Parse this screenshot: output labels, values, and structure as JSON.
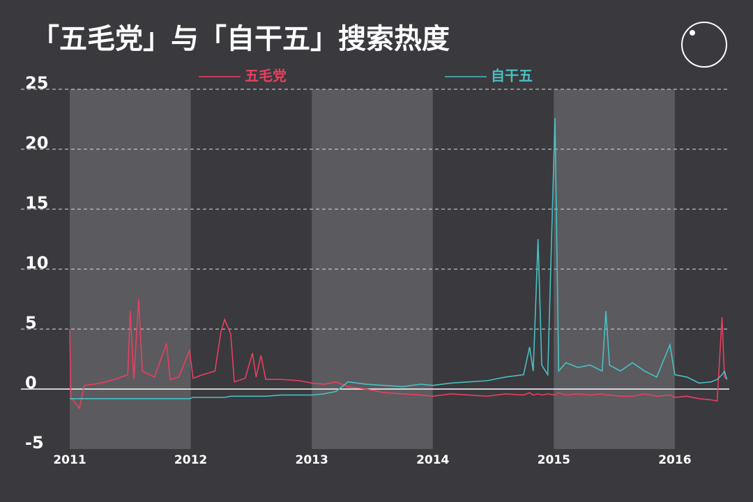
{
  "chart_data": {
    "type": "line",
    "title": "「五毛党」与「自干五」搜索热度",
    "x": [
      2011.0,
      2011.01,
      2011.05,
      2011.08,
      2011.12,
      2011.2,
      2011.3,
      2011.4,
      2011.48,
      2011.5,
      2011.53,
      2011.57,
      2011.6,
      2011.7,
      2011.8,
      2011.83,
      2011.9,
      2011.99,
      2012.02,
      2012.1,
      2012.2,
      2012.25,
      2012.28,
      2012.33,
      2012.36,
      2012.45,
      2012.51,
      2012.54,
      2012.58,
      2012.62,
      2012.75,
      2012.9,
      2013.0,
      2013.1,
      2013.2,
      2013.3,
      2013.45,
      2013.6,
      2013.75,
      2013.9,
      2014.0,
      2014.15,
      2014.3,
      2014.45,
      2014.6,
      2014.75,
      2014.8,
      2014.83,
      2014.87,
      2014.9,
      2014.95,
      2015.01,
      2015.04,
      2015.1,
      2015.2,
      2015.3,
      2015.4,
      2015.43,
      2015.46,
      2015.55,
      2015.65,
      2015.75,
      2015.85,
      2015.96,
      2016.0,
      2016.1,
      2016.2,
      2016.3,
      2016.35,
      2016.39,
      2016.41,
      2016.43
    ],
    "series": [
      {
        "name": "五毛党",
        "color": "#e8405f",
        "values": [
          5,
          -0.7,
          -1.2,
          -1.6,
          0.3,
          0.4,
          0.6,
          0.9,
          1.2,
          6.5,
          0.8,
          7.5,
          1.5,
          1.0,
          3.8,
          0.8,
          1.0,
          3.2,
          0.9,
          1.2,
          1.5,
          4.8,
          5.8,
          4.6,
          0.6,
          0.9,
          3.0,
          1.0,
          2.8,
          0.8,
          0.8,
          0.7,
          0.5,
          0.4,
          0.6,
          0.2,
          0,
          -0.3,
          -0.4,
          -0.5,
          -0.6,
          -0.4,
          -0.5,
          -0.6,
          -0.4,
          -0.5,
          -0.3,
          -0.5,
          -0.4,
          -0.5,
          -0.4,
          -0.5,
          -0.3,
          -0.5,
          -0.4,
          -0.5,
          -0.4,
          -0.5,
          -0.5,
          -0.6,
          -0.6,
          -0.4,
          -0.6,
          -0.5,
          -0.7,
          -0.6,
          -0.8,
          -0.9,
          -1.0,
          6.0,
          1.0,
          0.8
        ]
      },
      {
        "name": "自干五",
        "color": "#48c1c0",
        "values": [
          -0.8,
          -0.8,
          -0.8,
          -0.8,
          -0.8,
          -0.8,
          -0.8,
          -0.8,
          -0.8,
          -0.8,
          -0.8,
          -0.8,
          -0.8,
          -0.8,
          -0.8,
          -0.8,
          -0.8,
          -0.8,
          -0.7,
          -0.7,
          -0.7,
          -0.7,
          -0.7,
          -0.6,
          -0.6,
          -0.6,
          -0.6,
          -0.6,
          -0.6,
          -0.6,
          -0.5,
          -0.5,
          -0.5,
          -0.4,
          -0.2,
          0.6,
          0.4,
          0.3,
          0.2,
          0.4,
          0.3,
          0.5,
          0.6,
          0.7,
          1.0,
          1.2,
          3.5,
          1.5,
          12.5,
          2.0,
          1.2,
          22.6,
          1.5,
          2.2,
          1.8,
          2.0,
          1.5,
          6.5,
          2.0,
          1.5,
          2.2,
          1.5,
          1.0,
          3.7,
          1.2,
          1.0,
          0.5,
          0.6,
          0.8,
          1.2,
          1.5,
          0.8
        ]
      }
    ],
    "xlim": [
      2011,
      2016.45
    ],
    "xticks": [
      2011,
      2012,
      2013,
      2014,
      2015,
      2016
    ],
    "ylim": [
      -5,
      25
    ],
    "yticks": [
      25,
      20,
      15,
      10,
      5,
      0,
      -5
    ],
    "grid": true
  }
}
